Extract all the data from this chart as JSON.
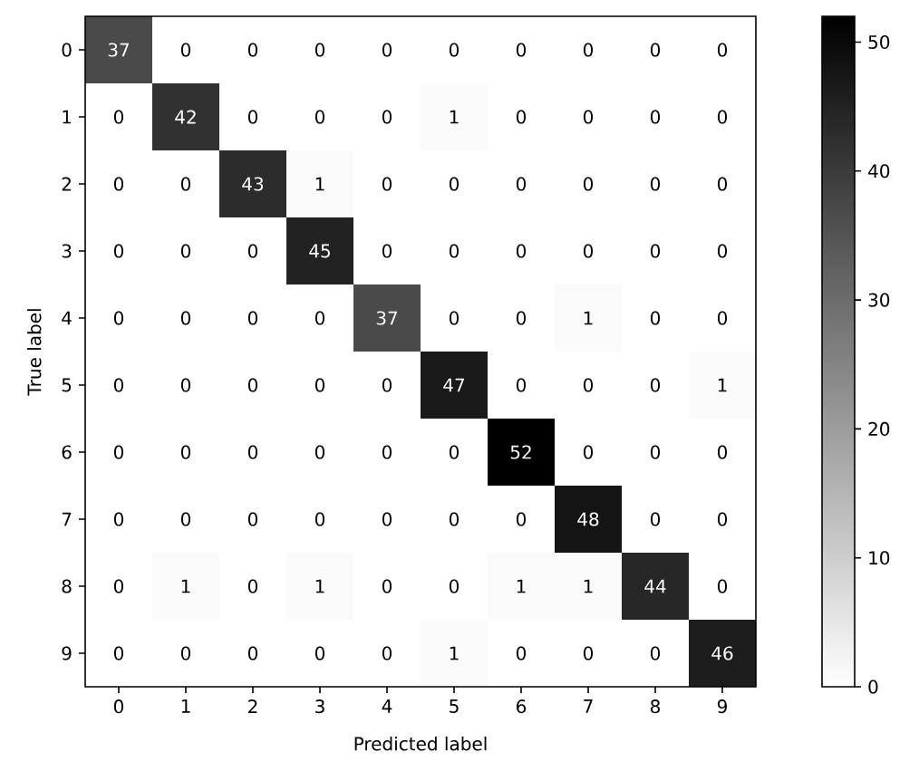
{
  "chart_data": {
    "type": "heatmap",
    "xlabel": "Predicted label",
    "ylabel": "True label",
    "categories": [
      "0",
      "1",
      "2",
      "3",
      "4",
      "5",
      "6",
      "7",
      "8",
      "9"
    ],
    "y_categories": [
      "0",
      "1",
      "2",
      "3",
      "4",
      "5",
      "6",
      "7",
      "8",
      "9"
    ],
    "cells": [
      [
        37,
        0,
        0,
        0,
        0,
        0,
        0,
        0,
        0,
        0
      ],
      [
        0,
        42,
        0,
        0,
        0,
        1,
        0,
        0,
        0,
        0
      ],
      [
        0,
        0,
        43,
        1,
        0,
        0,
        0,
        0,
        0,
        0
      ],
      [
        0,
        0,
        0,
        45,
        0,
        0,
        0,
        0,
        0,
        0
      ],
      [
        0,
        0,
        0,
        0,
        37,
        0,
        0,
        1,
        0,
        0
      ],
      [
        0,
        0,
        0,
        0,
        0,
        47,
        0,
        0,
        0,
        1
      ],
      [
        0,
        0,
        0,
        0,
        0,
        0,
        52,
        0,
        0,
        0
      ],
      [
        0,
        0,
        0,
        0,
        0,
        0,
        0,
        48,
        0,
        0
      ],
      [
        0,
        1,
        0,
        1,
        0,
        0,
        1,
        1,
        44,
        0
      ],
      [
        0,
        0,
        0,
        0,
        0,
        1,
        0,
        0,
        0,
        46
      ]
    ],
    "clim": [
      0,
      52
    ],
    "cticks": [
      0,
      10,
      20,
      30,
      40,
      50
    ],
    "data_labels": true
  }
}
